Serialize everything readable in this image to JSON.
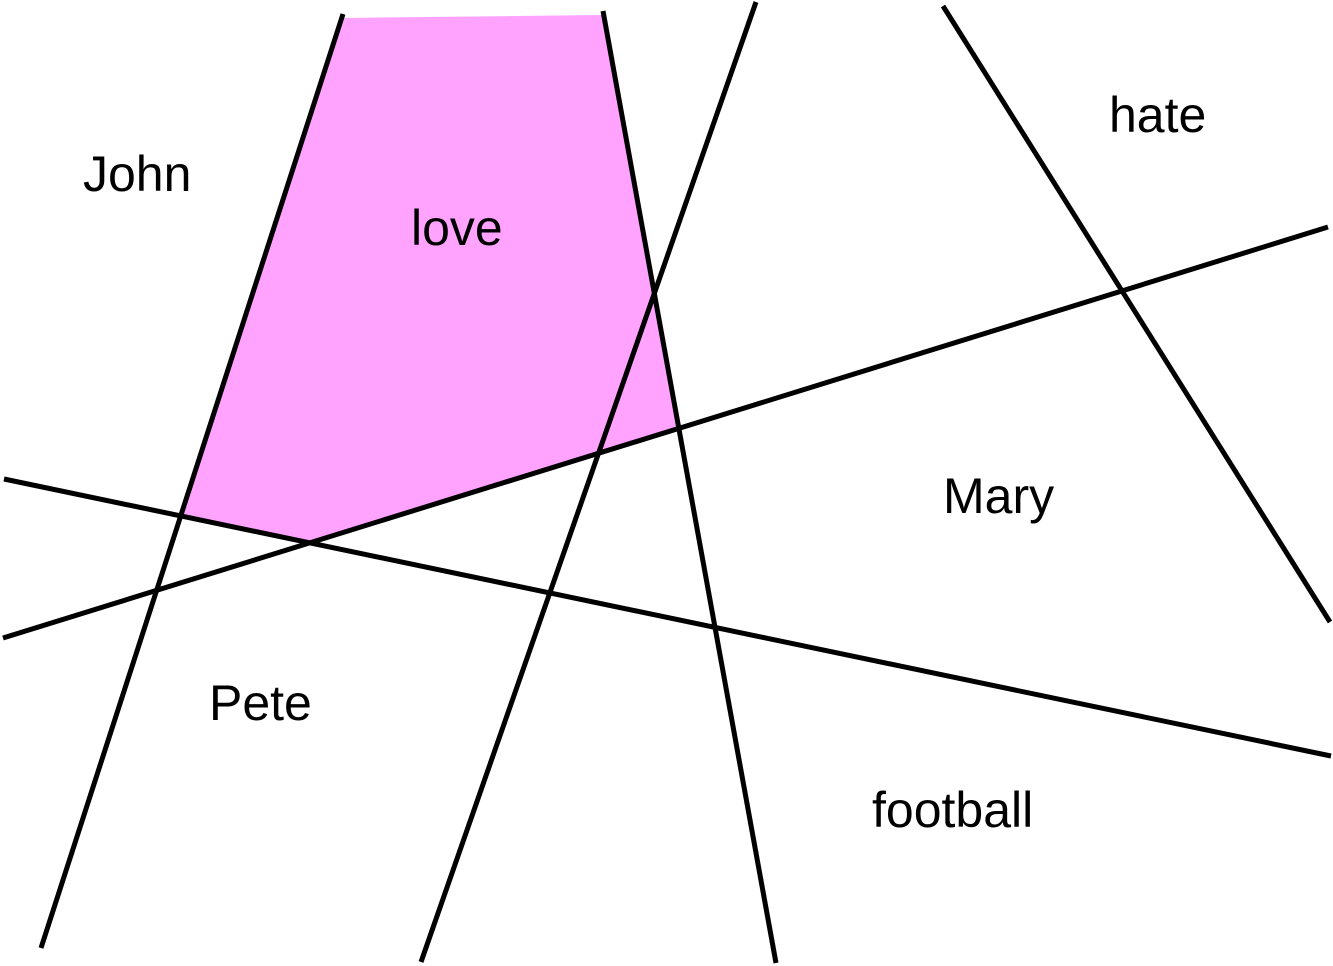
{
  "diagram": {
    "highlight_color": "#ffa3ff",
    "line_color": "#000000",
    "labels": {
      "john": "John",
      "love": "love",
      "hate": "hate",
      "mary": "Mary",
      "pete": "Pete",
      "football": "football"
    }
  }
}
